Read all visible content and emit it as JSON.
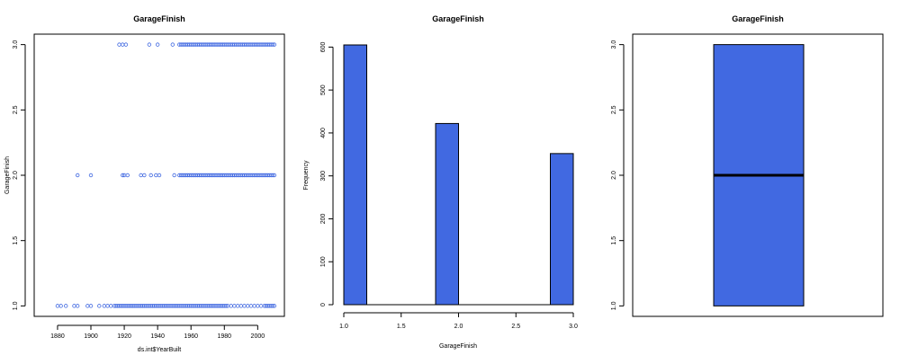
{
  "chart_data": [
    {
      "type": "scatter",
      "title": "GarageFinish",
      "xlabel": "ds.int$YearBuilt",
      "ylabel": "GarageFinish",
      "xlim": [
        1866,
        2016
      ],
      "ylim": [
        0.92,
        3.08
      ],
      "xticks": [
        "1880",
        "1900",
        "1920",
        "1940",
        "1960",
        "1980",
        "2000"
      ],
      "yticks": [
        "1.0",
        "1.5",
        "2.0",
        "2.5",
        "3.0"
      ],
      "marker_color": "#4169E1",
      "series": [
        {
          "y": 3,
          "x": [
            1917,
            1919,
            1921,
            1935,
            1940,
            1949,
            1953,
            1954,
            1955,
            1956,
            1957,
            1958,
            1959,
            1960,
            1961,
            1962,
            1963,
            1964,
            1965,
            1966,
            1967,
            1968,
            1969,
            1970,
            1971,
            1972,
            1973,
            1974,
            1975,
            1976,
            1977,
            1978,
            1979,
            1980,
            1981,
            1982,
            1983,
            1984,
            1985,
            1986,
            1987,
            1988,
            1989,
            1990,
            1991,
            1992,
            1993,
            1994,
            1995,
            1996,
            1997,
            1998,
            1999,
            2000,
            2001,
            2002,
            2003,
            2004,
            2005,
            2006,
            2007,
            2008,
            2009,
            2010
          ]
        },
        {
          "y": 2,
          "x": [
            1892,
            1900,
            1919,
            1920,
            1922,
            1930,
            1932,
            1936,
            1939,
            1941,
            1950,
            1953,
            1954,
            1955,
            1956,
            1957,
            1958,
            1959,
            1960,
            1961,
            1962,
            1963,
            1964,
            1965,
            1966,
            1967,
            1968,
            1969,
            1970,
            1971,
            1972,
            1973,
            1974,
            1975,
            1976,
            1977,
            1978,
            1979,
            1980,
            1981,
            1982,
            1983,
            1984,
            1985,
            1986,
            1987,
            1988,
            1989,
            1990,
            1991,
            1992,
            1993,
            1994,
            1995,
            1996,
            1997,
            1998,
            1999,
            2000,
            2001,
            2002,
            2003,
            2004,
            2005,
            2006,
            2007,
            2008,
            2009,
            2010
          ]
        },
        {
          "y": 1,
          "x": [
            1880,
            1882,
            1885,
            1890,
            1892,
            1898,
            1900,
            1905,
            1908,
            1910,
            1912,
            1914,
            1915,
            1916,
            1917,
            1918,
            1919,
            1920,
            1921,
            1922,
            1923,
            1924,
            1925,
            1926,
            1927,
            1928,
            1929,
            1930,
            1931,
            1932,
            1933,
            1934,
            1935,
            1936,
            1937,
            1938,
            1939,
            1940,
            1941,
            1942,
            1943,
            1944,
            1945,
            1946,
            1947,
            1948,
            1949,
            1950,
            1951,
            1952,
            1953,
            1954,
            1955,
            1956,
            1957,
            1958,
            1959,
            1960,
            1961,
            1962,
            1963,
            1964,
            1965,
            1966,
            1967,
            1968,
            1969,
            1970,
            1971,
            1972,
            1973,
            1974,
            1975,
            1976,
            1977,
            1978,
            1979,
            1980,
            1981,
            1982,
            1984,
            1986,
            1988,
            1990,
            1992,
            1994,
            1996,
            1998,
            2000,
            2002,
            2004,
            2005,
            2006,
            2007,
            2008,
            2009,
            2010
          ]
        }
      ]
    },
    {
      "type": "bar",
      "title": "GarageFinish",
      "xlabel": "GarageFinish",
      "ylabel": "Frequency",
      "xlim": [
        1.0,
        3.0
      ],
      "ylim": [
        0,
        605
      ],
      "xticks": [
        "1.0",
        "1.5",
        "2.0",
        "2.5",
        "3.0"
      ],
      "yticks": [
        "0",
        "100",
        "200",
        "300",
        "400",
        "500",
        "600"
      ],
      "fill_color": "#4169E1",
      "bins": [
        {
          "from": 1.0,
          "to": 1.2,
          "count": 605
        },
        {
          "from": 1.2,
          "to": 1.4,
          "count": 0
        },
        {
          "from": 1.4,
          "to": 1.6,
          "count": 0
        },
        {
          "from": 1.6,
          "to": 1.8,
          "count": 0
        },
        {
          "from": 1.8,
          "to": 2.0,
          "count": 422
        },
        {
          "from": 2.0,
          "to": 2.2,
          "count": 0
        },
        {
          "from": 2.2,
          "to": 2.4,
          "count": 0
        },
        {
          "from": 2.4,
          "to": 2.6,
          "count": 0
        },
        {
          "from": 2.6,
          "to": 2.8,
          "count": 0
        },
        {
          "from": 2.8,
          "to": 3.0,
          "count": 352
        }
      ]
    },
    {
      "type": "box",
      "title": "GarageFinish",
      "ylim": [
        0.92,
        3.08
      ],
      "yticks": [
        "1.0",
        "1.5",
        "2.0",
        "2.5",
        "3.0"
      ],
      "fill_color": "#4169E1",
      "stats": {
        "min": 1.0,
        "q1": 1.0,
        "median": 2.0,
        "q3": 3.0,
        "max": 3.0
      }
    }
  ]
}
